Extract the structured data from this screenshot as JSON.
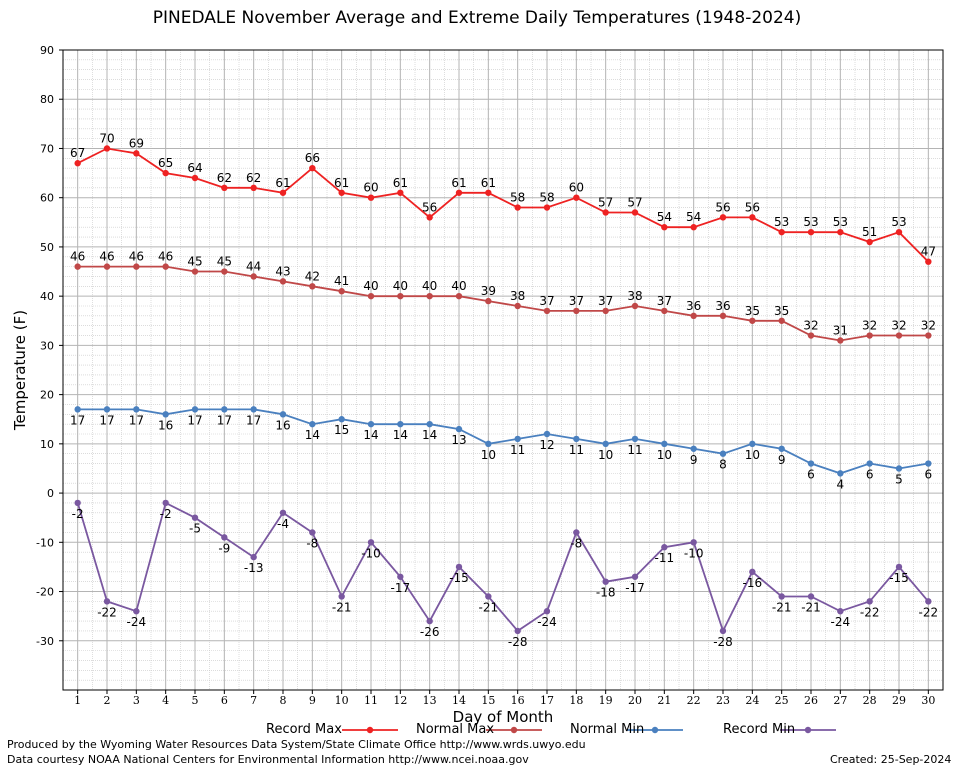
{
  "chart_data": {
    "type": "line",
    "title": "PINEDALE November Average and Extreme Daily Temperatures (1948-2024)",
    "xlabel": "Day of Month",
    "ylabel": "Temperature (F)",
    "x": [
      1,
      2,
      3,
      4,
      5,
      6,
      7,
      8,
      9,
      10,
      11,
      12,
      13,
      14,
      15,
      16,
      17,
      18,
      19,
      20,
      21,
      22,
      23,
      24,
      25,
      26,
      27,
      28,
      29,
      30
    ],
    "xlim": [
      0.5,
      30.5
    ],
    "ylim": [
      -40,
      90
    ],
    "yticks": [
      -30,
      -20,
      -10,
      0,
      10,
      20,
      30,
      40,
      50,
      60,
      70,
      80,
      90
    ],
    "grid": true,
    "legend_position": "bottom",
    "series": [
      {
        "name": "Record Max",
        "color": "#ee2222",
        "values": [
          67,
          70,
          69,
          65,
          64,
          62,
          62,
          61,
          66,
          61,
          60,
          61,
          56,
          61,
          61,
          58,
          58,
          60,
          57,
          57,
          54,
          54,
          56,
          56,
          53,
          53,
          53,
          51,
          53,
          47
        ]
      },
      {
        "name": "Normal Max",
        "color": "#c04848",
        "values": [
          46,
          46,
          46,
          46,
          45,
          45,
          44,
          43,
          42,
          41,
          40,
          40,
          40,
          40,
          39,
          38,
          37,
          37,
          37,
          38,
          37,
          36,
          36,
          35,
          35,
          32,
          31,
          32,
          32,
          32
        ]
      },
      {
        "name": "Normal Min",
        "color": "#4a80bf",
        "values": [
          17,
          17,
          17,
          16,
          17,
          17,
          17,
          16,
          14,
          15,
          14,
          14,
          14,
          13,
          10,
          11,
          12,
          11,
          10,
          11,
          10,
          9,
          8,
          10,
          9,
          6,
          4,
          6,
          5,
          6
        ]
      },
      {
        "name": "Record Min",
        "color": "#7a58a0",
        "values": [
          -2,
          -22,
          -24,
          -2,
          -5,
          -9,
          -13,
          -4,
          -8,
          -21,
          -10,
          -17,
          -26,
          -15,
          -21,
          -28,
          -24,
          -8,
          -18,
          -17,
          -11,
          -10,
          -28,
          -16,
          -21,
          -21,
          -24,
          -22,
          -15,
          -22
        ]
      }
    ]
  },
  "footer": {
    "produced_by": "Produced by the Wyoming Water Resources Data System/State Climate Office http://www.wrds.uwyo.edu",
    "data_courtesy": "Data courtesy NOAA National Centers for Environmental Information http://www.ncei.noaa.gov",
    "created": "Created:  25-Sep-2024"
  }
}
